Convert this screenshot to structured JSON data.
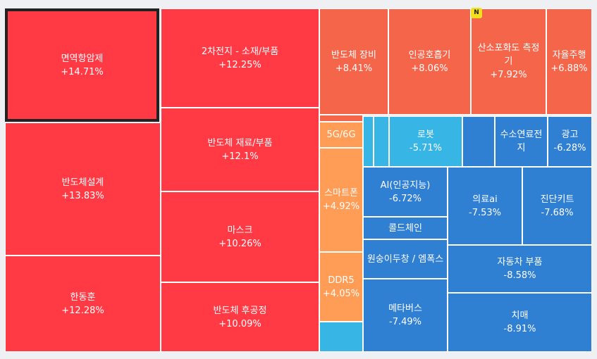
{
  "colors": {
    "strong_up": "#ff3a45",
    "up": "#f4654a",
    "mild_up": "#ff9c55",
    "mild_down": "#37b6e6",
    "down": "#2f7fd2"
  },
  "tiles": {
    "immune": {
      "name": "면역항암제",
      "pct": "+14.71%"
    },
    "semi_design": {
      "name": "반도체설계",
      "pct": "+13.83%"
    },
    "handong": {
      "name": "한동훈",
      "pct": "+12.28%"
    },
    "battery": {
      "name": "2차전지 - 소재/부품",
      "pct": "+12.25%"
    },
    "semi_material": {
      "name": "반도체 재료/부품",
      "pct": "+12.1%"
    },
    "mask": {
      "name": "마스크",
      "pct": "+10.26%"
    },
    "semi_post": {
      "name": "반도체 후공정",
      "pct": "+10.09%"
    },
    "semi_equip": {
      "name": "반도체 장비",
      "pct": "+8.41%"
    },
    "ai_ventilator": {
      "name": "인공호흡기",
      "pct": "+8.06%"
    },
    "oxygen": {
      "name": "산소포화도 측정기",
      "pct": "+7.92%",
      "badge": "N"
    },
    "autonomous": {
      "name": "자율주행",
      "pct": "+6.88%"
    },
    "g5g6": {
      "name": "5G/6G",
      "pct": ""
    },
    "smartphone": {
      "name": "스마트폰",
      "pct": "+4.92%"
    },
    "ddr5": {
      "name": "DDR5",
      "pct": "+4.05%"
    },
    "robot": {
      "name": "로봇",
      "pct": "-5.71%"
    },
    "hydrogen": {
      "name": "수소연료전지",
      "pct": ""
    },
    "ad": {
      "name": "광고",
      "pct": "-6.28%"
    },
    "ai": {
      "name": "AI(인공지능)",
      "pct": "-6.72%"
    },
    "cold_chain": {
      "name": "콜드체인",
      "pct": ""
    },
    "monkeypox": {
      "name": "원숭이두창 / 엠폭스",
      "pct": ""
    },
    "metaverse": {
      "name": "메타버스",
      "pct": "-7.49%"
    },
    "medical_ai": {
      "name": "의료ai",
      "pct": "-7.53%"
    },
    "diag_kit": {
      "name": "진단키트",
      "pct": "-7.68%"
    },
    "auto_parts": {
      "name": "자동차 부품",
      "pct": "-8.58%"
    },
    "dementia": {
      "name": "치매",
      "pct": "-8.91%"
    }
  }
}
